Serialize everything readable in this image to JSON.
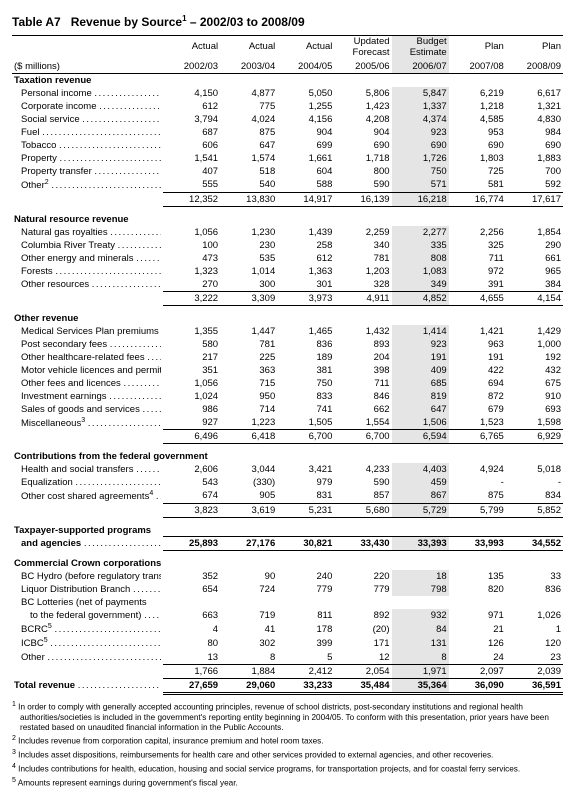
{
  "title_prefix": "Table A7",
  "title_main": "Revenue by Source",
  "title_supnum": "1",
  "title_suffix": " – 2002/03 to 2008/09",
  "unit_label": "($ millions)",
  "headers_top": [
    "Actual",
    "Actual",
    "Actual",
    "Updated\nForecast",
    "Budget\nEstimate",
    "Plan",
    "Plan"
  ],
  "headers_bot": [
    "2002/03",
    "2003/04",
    "2004/05",
    "2005/06",
    "2006/07",
    "2007/08",
    "2008/09"
  ],
  "shade_col_index": 4,
  "sections": [
    {
      "label": "Taxation revenue",
      "rows": [
        {
          "l": "Personal income",
          "v": [
            "4,150",
            "4,877",
            "5,050",
            "5,806",
            "5,847",
            "6,219",
            "6,617"
          ]
        },
        {
          "l": "Corporate income",
          "v": [
            "612",
            "775",
            "1,255",
            "1,423",
            "1,337",
            "1,218",
            "1,321"
          ]
        },
        {
          "l": "Social service",
          "v": [
            "3,794",
            "4,024",
            "4,156",
            "4,208",
            "4,374",
            "4,585",
            "4,830"
          ]
        },
        {
          "l": "Fuel",
          "v": [
            "687",
            "875",
            "904",
            "904",
            "923",
            "953",
            "984"
          ]
        },
        {
          "l": "Tobacco",
          "v": [
            "606",
            "647",
            "699",
            "690",
            "690",
            "690",
            "690"
          ]
        },
        {
          "l": "Property",
          "v": [
            "1,541",
            "1,574",
            "1,661",
            "1,718",
            "1,726",
            "1,803",
            "1,883"
          ]
        },
        {
          "l": "Property transfer",
          "v": [
            "407",
            "518",
            "604",
            "800",
            "750",
            "725",
            "700"
          ]
        },
        {
          "l": "Other",
          "sup": "2",
          "v": [
            "555",
            "540",
            "588",
            "590",
            "571",
            "581",
            "592"
          ]
        }
      ],
      "subtotal": [
        "12,352",
        "13,830",
        "14,917",
        "16,139",
        "16,218",
        "16,774",
        "17,617"
      ]
    },
    {
      "label": "Natural resource revenue",
      "rows": [
        {
          "l": "Natural gas royalties",
          "v": [
            "1,056",
            "1,230",
            "1,439",
            "2,259",
            "2,277",
            "2,256",
            "1,854"
          ]
        },
        {
          "l": "Columbia River Treaty",
          "v": [
            "100",
            "230",
            "258",
            "340",
            "335",
            "325",
            "290"
          ]
        },
        {
          "l": "Other energy and minerals",
          "v": [
            "473",
            "535",
            "612",
            "781",
            "808",
            "711",
            "661"
          ]
        },
        {
          "l": "Forests",
          "v": [
            "1,323",
            "1,014",
            "1,363",
            "1,203",
            "1,083",
            "972",
            "965"
          ]
        },
        {
          "l": "Other resources",
          "v": [
            "270",
            "300",
            "301",
            "328",
            "349",
            "391",
            "384"
          ]
        }
      ],
      "subtotal": [
        "3,222",
        "3,309",
        "3,973",
        "4,911",
        "4,852",
        "4,655",
        "4,154"
      ]
    },
    {
      "label": "Other revenue",
      "rows": [
        {
          "l": "Medical Services Plan premiums",
          "v": [
            "1,355",
            "1,447",
            "1,465",
            "1,432",
            "1,414",
            "1,421",
            "1,429"
          ]
        },
        {
          "l": "Post secondary fees",
          "v": [
            "580",
            "781",
            "836",
            "893",
            "923",
            "963",
            "1,000"
          ]
        },
        {
          "l": "Other healthcare-related fees",
          "v": [
            "217",
            "225",
            "189",
            "204",
            "191",
            "191",
            "192"
          ]
        },
        {
          "l": "Motor vehicle licences and permits",
          "v": [
            "351",
            "363",
            "381",
            "398",
            "409",
            "422",
            "432"
          ]
        },
        {
          "l": "Other fees and licences",
          "v": [
            "1,056",
            "715",
            "750",
            "711",
            "685",
            "694",
            "675"
          ]
        },
        {
          "l": "Investment earnings",
          "v": [
            "1,024",
            "950",
            "833",
            "846",
            "819",
            "872",
            "910"
          ]
        },
        {
          "l": "Sales of goods and services",
          "v": [
            "986",
            "714",
            "741",
            "662",
            "647",
            "679",
            "693"
          ]
        },
        {
          "l": "Miscellaneous",
          "sup": "3",
          "v": [
            "927",
            "1,223",
            "1,505",
            "1,554",
            "1,506",
            "1,523",
            "1,598"
          ]
        }
      ],
      "subtotal": [
        "6,496",
        "6,418",
        "6,700",
        "6,700",
        "6,594",
        "6,765",
        "6,929"
      ]
    },
    {
      "label": "Contributions from the federal government",
      "rows": [
        {
          "l": "Health and social transfers",
          "v": [
            "2,606",
            "3,044",
            "3,421",
            "4,233",
            "4,403",
            "4,924",
            "5,018"
          ]
        },
        {
          "l": "Equalization",
          "v": [
            "543",
            "(330)",
            "979",
            "590",
            "459",
            "-",
            "-"
          ]
        },
        {
          "l": "Other cost shared agreements",
          "sup": "4",
          "v": [
            "674",
            "905",
            "831",
            "857",
            "867",
            "875",
            "834"
          ]
        }
      ],
      "subtotal": [
        "3,823",
        "3,619",
        "5,231",
        "5,680",
        "5,729",
        "5,799",
        "5,852"
      ]
    }
  ],
  "tax_supported": {
    "l1": "Taxpayer-supported programs",
    "l2": "and agencies",
    "v": [
      "25,893",
      "27,176",
      "30,821",
      "33,430",
      "33,393",
      "33,993",
      "34,552"
    ]
  },
  "crown": {
    "label": "Commercial Crown corporations",
    "rows": [
      {
        "l": "BC Hydro (before regulatory transfers)",
        "v": [
          "352",
          "90",
          "240",
          "220",
          "18",
          "135",
          "33"
        ]
      },
      {
        "l": "Liquor Distribution Branch",
        "v": [
          "654",
          "724",
          "779",
          "779",
          "798",
          "820",
          "836"
        ]
      },
      {
        "l": "BC Lotteries (net of payments",
        "l2": "to the federal government)",
        "v": [
          "663",
          "719",
          "811",
          "892",
          "932",
          "971",
          "1,026"
        ]
      },
      {
        "l": "BCRC",
        "sup": "5",
        "v": [
          "4",
          "41",
          "178",
          "(20)",
          "84",
          "21",
          "1"
        ]
      },
      {
        "l": "ICBC",
        "sup": "5",
        "v": [
          "80",
          "302",
          "399",
          "171",
          "131",
          "126",
          "120"
        ]
      },
      {
        "l": "Other",
        "v": [
          "13",
          "8",
          "5",
          "12",
          "8",
          "24",
          "23"
        ]
      }
    ],
    "subtotal": [
      "1,766",
      "1,884",
      "2,412",
      "2,054",
      "1,971",
      "2,097",
      "2,039"
    ]
  },
  "grand_total": {
    "l": "Total revenue",
    "v": [
      "27,659",
      "29,060",
      "33,233",
      "35,484",
      "35,364",
      "36,090",
      "36,591"
    ]
  },
  "footnotes": [
    {
      "n": "1",
      "t": "In order to comply with generally accepted accounting principles, revenue of school districts, post-secondary institutions and regional health authorities/societies is included in the government's reporting entity beginning in 2004/05. To conform with this presentation, prior years have been restated based on unaudited financial information in the Public Accounts."
    },
    {
      "n": "2",
      "t": "Includes revenue from corporation capital, insurance premium and hotel room taxes."
    },
    {
      "n": "3",
      "t": "Includes asset dispositions, reimbursements for health care and other services provided to external agencies, and other recoveries."
    },
    {
      "n": "4",
      "t": "Includes contributions for health, education, housing and social service programs, for transportation projects, and for coastal ferry services."
    },
    {
      "n": "5",
      "t": "Amounts represent earnings during government's fiscal year."
    }
  ]
}
